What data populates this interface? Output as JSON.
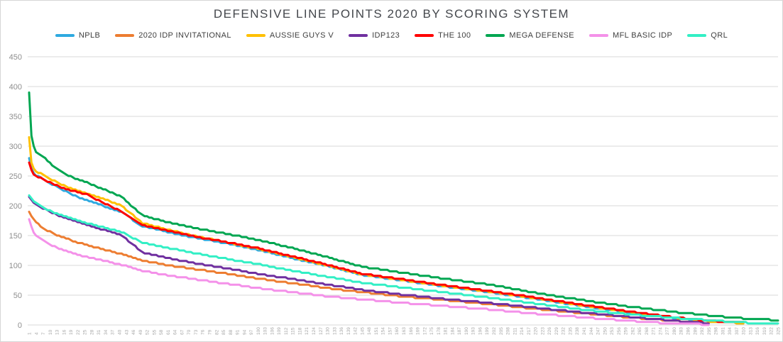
{
  "title": "DEFENSIVE LINE POINTS 2020 BY SCORING SYSTEM",
  "chart_data": {
    "type": "line",
    "title": "DEFENSIVE LINE POINTS 2020 BY SCORING SYSTEM",
    "xlabel": "",
    "ylabel": "",
    "x_meaning": "player rank (1 = highest scoring defensive lineman)",
    "x_ticks_start": 1,
    "x_ticks_step": 3,
    "x_ticks_end": 325,
    "ylim": [
      0,
      450
    ],
    "y_ticks": [
      450,
      400,
      350,
      300,
      250,
      200,
      150,
      100,
      50,
      0
    ],
    "grid": "horizontal",
    "legend_position": "top",
    "anchor_ranks": [
      1,
      2,
      3,
      4,
      6,
      8,
      11,
      15,
      20,
      26,
      33,
      41,
      50,
      60,
      72,
      85,
      100,
      115,
      130,
      145,
      160,
      180,
      200,
      220,
      240,
      260,
      280,
      295,
      310,
      325
    ],
    "series": [
      {
        "name": "NPLB",
        "color": "#2EA9E0",
        "values": [
          281,
          263,
          256,
          251,
          247,
          242,
          236,
          228,
          218,
          209,
          200,
          189,
          166,
          157,
          147,
          138,
          126,
          112,
          99,
          84,
          76,
          65,
          55,
          44,
          32,
          21,
          11,
          6,
          3,
          null
        ]
      },
      {
        "name": "2020 IDP INVITATIONAL",
        "color": "#ED7D31",
        "values": [
          191,
          183,
          177,
          172,
          166,
          161,
          154,
          148,
          141,
          134,
          127,
          119,
          108,
          101,
          94,
          87,
          78,
          70,
          62,
          55,
          49,
          42,
          35,
          27,
          20,
          13,
          7,
          3,
          null,
          null
        ]
      },
      {
        "name": "AUSSIE GUYS V",
        "color": "#FFC000",
        "values": [
          315,
          272,
          263,
          258,
          254,
          250,
          243,
          236,
          228,
          221,
          212,
          200,
          171,
          161,
          150,
          140,
          128,
          114,
          100,
          85,
          77,
          66,
          56,
          45,
          33,
          22,
          12,
          6,
          3,
          null
        ]
      },
      {
        "name": "IDP123",
        "color": "#7030A0",
        "values": [
          215,
          210,
          206,
          202,
          198,
          194,
          188,
          182,
          175,
          168,
          160,
          150,
          122,
          113,
          104,
          96,
          86,
          77,
          68,
          59,
          52,
          44,
          37,
          29,
          21,
          14,
          7,
          3,
          null,
          null
        ]
      },
      {
        "name": "THE 100",
        "color": "#FF0000",
        "values": [
          272,
          259,
          253,
          250,
          247,
          243,
          237,
          231,
          225,
          219,
          205,
          190,
          168,
          159,
          149,
          140,
          129,
          115,
          101,
          86,
          78,
          67,
          57,
          46,
          34,
          23,
          13,
          7,
          4,
          null
        ]
      },
      {
        "name": "MEGA DEFENSE",
        "color": "#00A651",
        "values": [
          390,
          318,
          301,
          291,
          284,
          279,
          268,
          257,
          247,
          239,
          228,
          215,
          184,
          173,
          163,
          154,
          143,
          129,
          114,
          98,
          89,
          78,
          68,
          54,
          42,
          31,
          22,
          16,
          11,
          8
        ]
      },
      {
        "name": "MFL BASIC IDP",
        "color": "#F491E9",
        "values": [
          177,
          164,
          156,
          150,
          144,
          139,
          133,
          127,
          120,
          114,
          108,
          101,
          91,
          84,
          77,
          70,
          62,
          55,
          48,
          43,
          38,
          32,
          26,
          19,
          13,
          7,
          2,
          1,
          null,
          null
        ]
      },
      {
        "name": "QRL",
        "color": "#33EFC5",
        "values": [
          218,
          212,
          208,
          204,
          200,
          195,
          190,
          184,
          178,
          171,
          164,
          156,
          138,
          130,
          121,
          112,
          102,
          91,
          81,
          71,
          64,
          55,
          46,
          36,
          26,
          18,
          12,
          8,
          4,
          2
        ]
      }
    ]
  },
  "colors": {
    "grid": "#dadada",
    "axis_text": "#8e8e8e",
    "x_axis_text": "#a6a6a6",
    "title_text": "#44474c",
    "legend_text": "#404040",
    "background": "#ffffff"
  }
}
